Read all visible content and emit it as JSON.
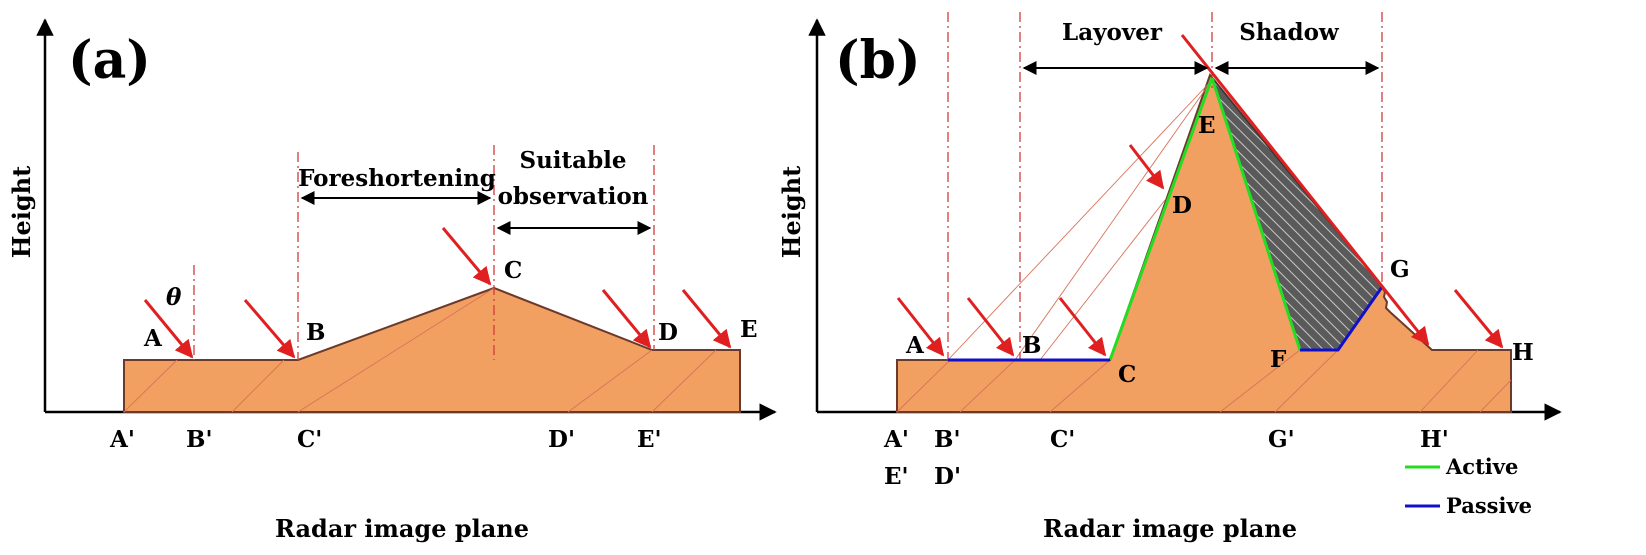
{
  "panel_a": {
    "tag": "(a)",
    "y_axis": "Height",
    "x_axis": "Radar image plane",
    "angle_symbol": "θ",
    "points": {
      "A": "A",
      "B": "B",
      "C": "C",
      "D": "D",
      "E": "E"
    },
    "projections": {
      "A": "A'",
      "B": "B'",
      "C": "C'",
      "D": "D'",
      "E": "E'"
    },
    "foreshortening": "Foreshortening",
    "suitable_line1": "Suitable",
    "suitable_line2": "observation"
  },
  "panel_b": {
    "tag": "(b)",
    "y_axis": "Height",
    "x_axis": "Radar image plane",
    "points": {
      "A": "A",
      "B": "B",
      "C": "C",
      "D": "D",
      "E": "E",
      "F": "F",
      "G": "G",
      "H": "H"
    },
    "projections": {
      "A": "A'",
      "B": "B'",
      "C": "C'",
      "G": "G'",
      "H": "H'",
      "E": "E'",
      "D": "D'"
    },
    "layover": "Layover",
    "shadow": "Shadow"
  },
  "legend": {
    "active": {
      "label": "Active",
      "color": "#22dd22"
    },
    "passive": {
      "label": "Passive",
      "color": "#1010cc"
    }
  },
  "colors": {
    "terrain": "#f2a061",
    "ray": "#e02020",
    "shadow_fill": "#555555"
  }
}
